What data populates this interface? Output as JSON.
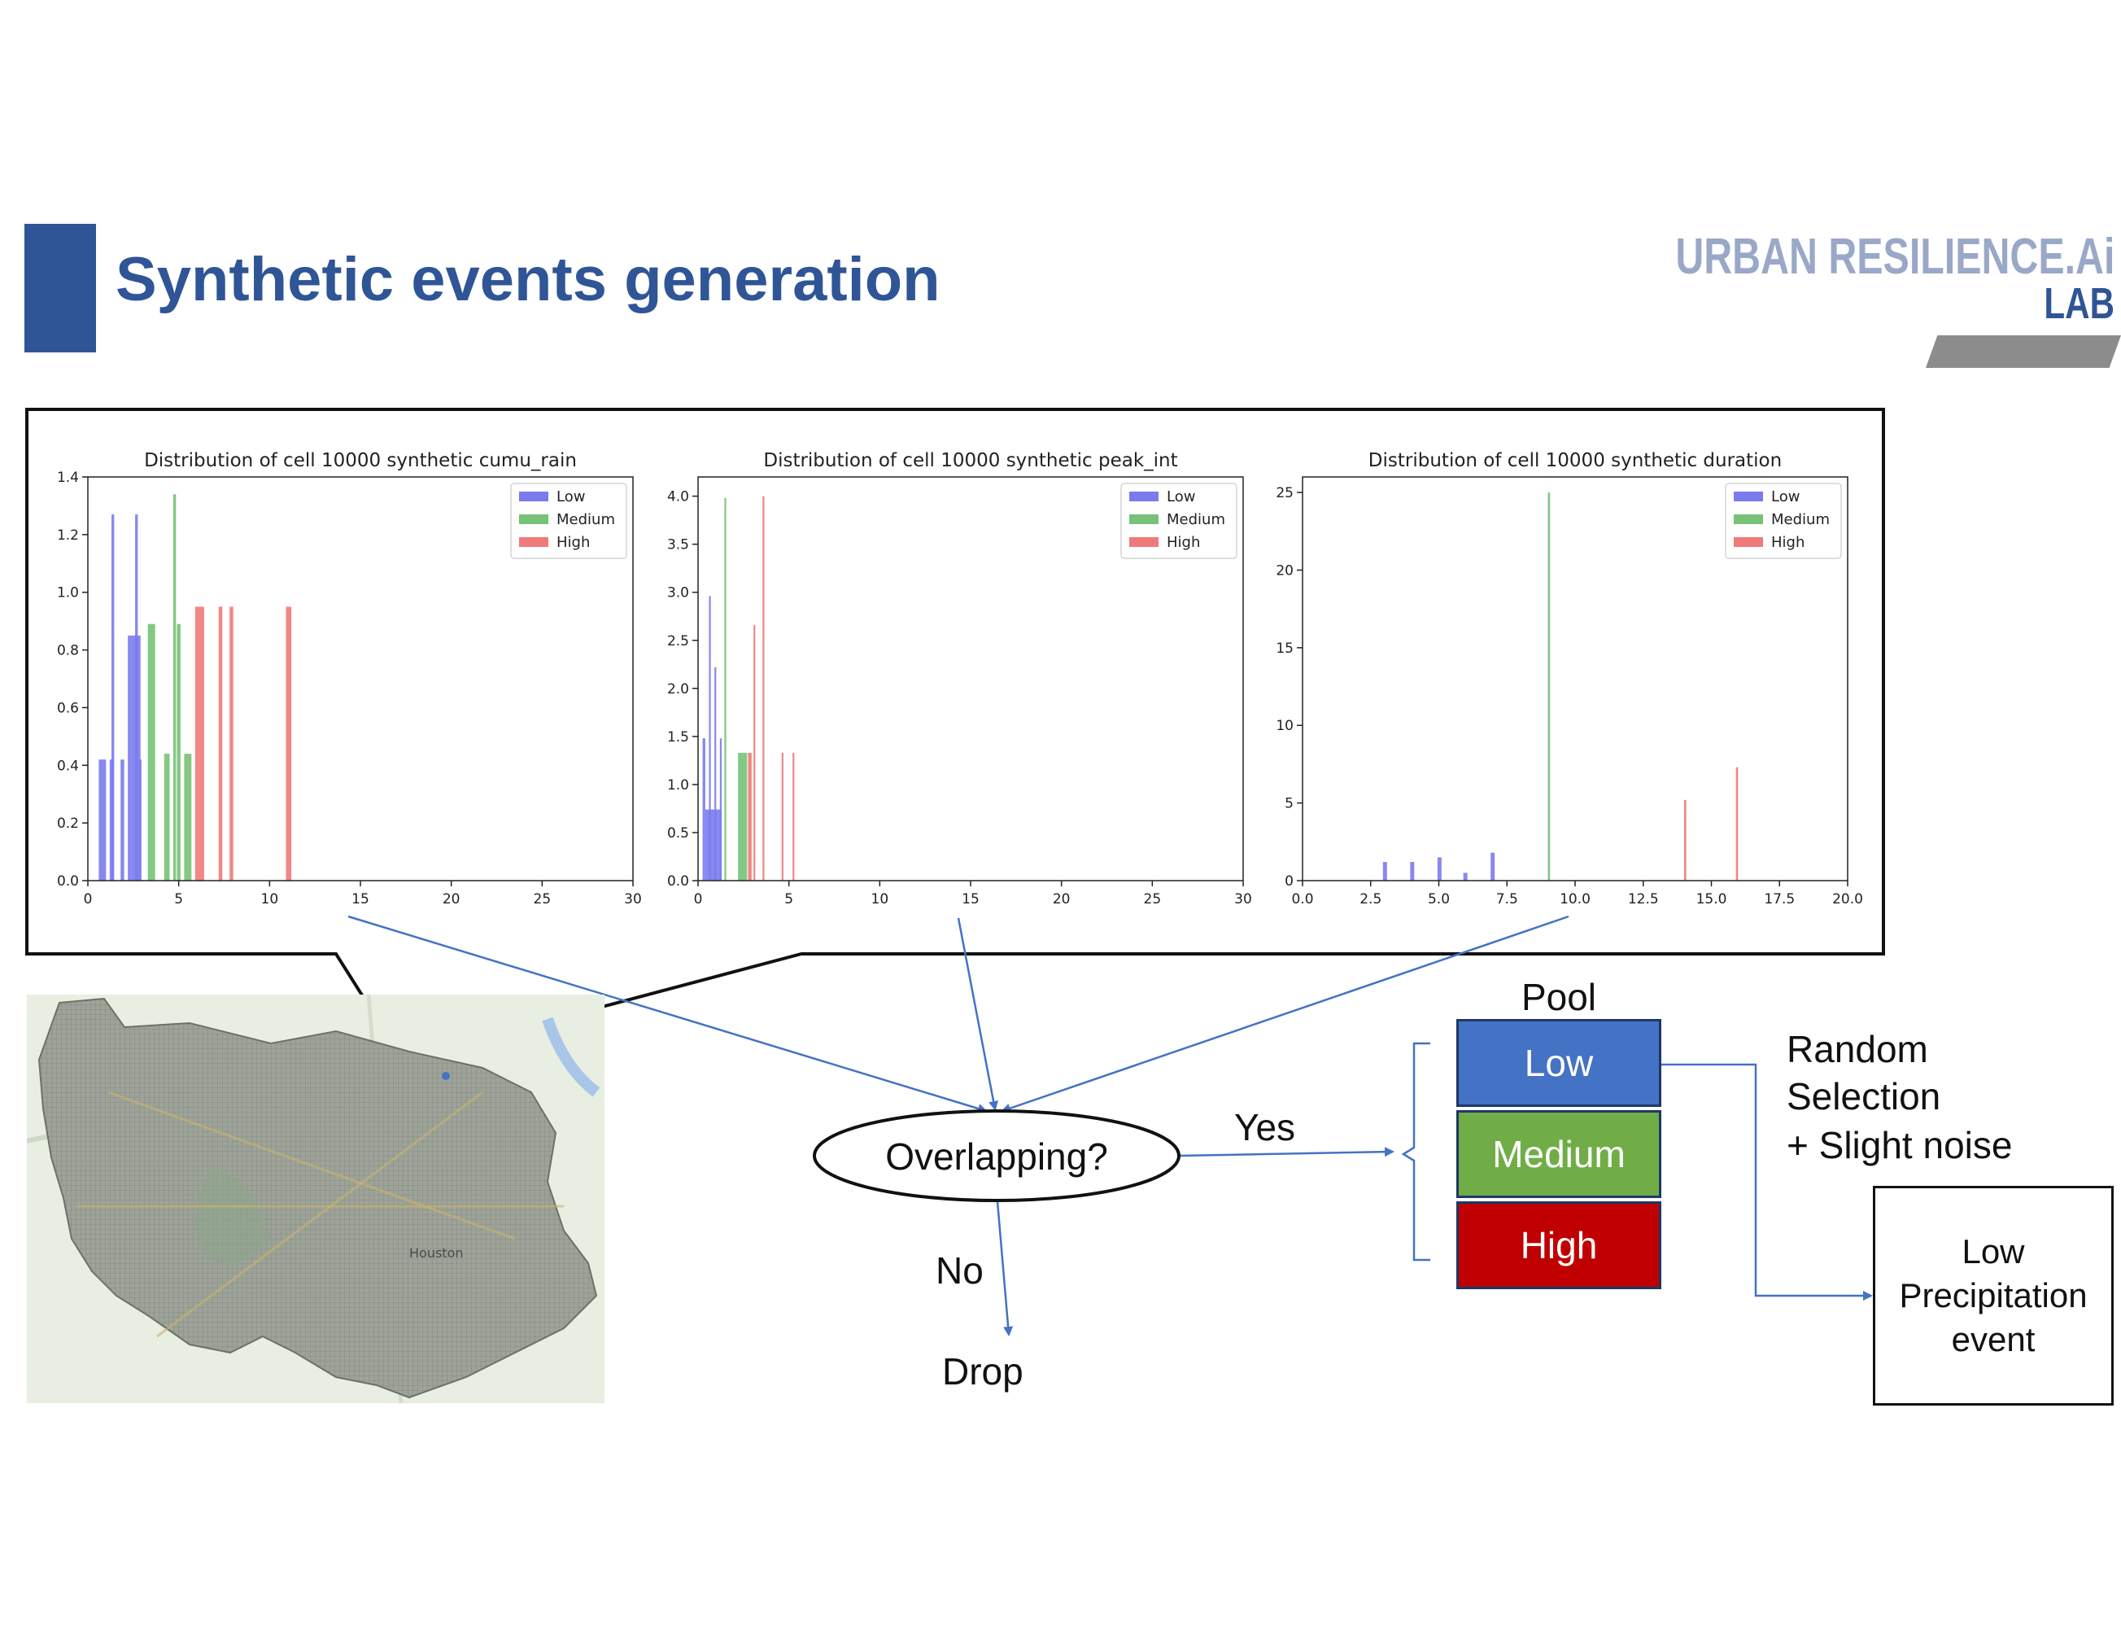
{
  "slide": {
    "title": "Synthetic events generation"
  },
  "logo": {
    "main": "URBAN RESILIENCE.Ai",
    "sub": "LAB"
  },
  "colors": {
    "low": "#7b7bf0",
    "medium": "#76c276",
    "high": "#f07a7a",
    "accent": "#2f5597",
    "arrow": "#4472c4",
    "pool_low": "#4472c4",
    "pool_medium": "#70ad47",
    "pool_high": "#c00000"
  },
  "chart_data": [
    {
      "type": "bar",
      "title": "Distribution of cell 10000 synthetic cumu_rain",
      "xlim": [
        0,
        30
      ],
      "ylim": [
        0,
        1.4
      ],
      "xticks": [
        "0",
        "5",
        "10",
        "15",
        "20",
        "25",
        "30"
      ],
      "yticks": [
        "0.0",
        "0.2",
        "0.4",
        "0.6",
        "0.8",
        "1.0",
        "1.2",
        "1.4"
      ],
      "legend": [
        "Low",
        "Medium",
        "High"
      ],
      "legend_position": "top-right",
      "series": [
        {
          "name": "Low",
          "bars": [
            [
              0.6,
              1.0,
              0.42
            ],
            [
              1.2,
              1.4,
              0.42
            ],
            [
              1.3,
              1.45,
              1.27
            ],
            [
              1.8,
              2.0,
              0.42
            ],
            [
              2.2,
              2.4,
              0.85
            ],
            [
              2.4,
              2.9,
              0.85
            ],
            [
              2.6,
              2.75,
              1.27
            ],
            [
              2.8,
              2.95,
              0.42
            ]
          ]
        },
        {
          "name": "Medium",
          "bars": [
            [
              3.3,
              3.7,
              0.89
            ],
            [
              4.2,
              4.5,
              0.44
            ],
            [
              4.7,
              4.85,
              1.34
            ],
            [
              4.9,
              5.1,
              0.89
            ],
            [
              5.3,
              5.7,
              0.44
            ]
          ]
        },
        {
          "name": "High",
          "bars": [
            [
              5.9,
              6.4,
              0.95
            ],
            [
              7.2,
              7.4,
              0.95
            ],
            [
              7.8,
              8.0,
              0.95
            ],
            [
              10.9,
              11.2,
              0.95
            ]
          ]
        }
      ]
    },
    {
      "type": "bar",
      "title": "Distribution of cell 10000 synthetic peak_int",
      "xlim": [
        0,
        30
      ],
      "ylim": [
        0,
        4.2
      ],
      "xticks": [
        "0",
        "5",
        "10",
        "15",
        "20",
        "25",
        "30"
      ],
      "yticks": [
        "0.0",
        "0.5",
        "1.0",
        "1.5",
        "2.0",
        "2.5",
        "3.0",
        "3.5",
        "4.0"
      ],
      "legend": [
        "Low",
        "Medium",
        "High"
      ],
      "legend_position": "top-right",
      "series": [
        {
          "name": "Low",
          "bars": [
            [
              0.25,
              0.4,
              1.48
            ],
            [
              0.4,
              1.3,
              0.74
            ],
            [
              0.6,
              0.7,
              2.96
            ],
            [
              0.9,
              1.0,
              2.22
            ],
            [
              1.2,
              1.3,
              1.48
            ]
          ]
        },
        {
          "name": "Medium",
          "bars": [
            [
              1.45,
              1.55,
              3.98
            ],
            [
              2.2,
              2.7,
              1.33
            ]
          ]
        },
        {
          "name": "High",
          "bars": [
            [
              2.75,
              2.95,
              1.33
            ],
            [
              3.05,
              3.15,
              2.66
            ],
            [
              3.55,
              3.65,
              4.0
            ],
            [
              4.6,
              4.7,
              1.33
            ],
            [
              5.2,
              5.3,
              1.33
            ]
          ]
        }
      ]
    },
    {
      "type": "bar",
      "title": "Distribution of cell 10000 synthetic duration",
      "xlim": [
        0,
        20
      ],
      "ylim": [
        0,
        26
      ],
      "xticks": [
        "0.0",
        "2.5",
        "5.0",
        "7.5",
        "10.0",
        "12.5",
        "15.0",
        "17.5",
        "20.0"
      ],
      "yticks": [
        "0",
        "5",
        "10",
        "15",
        "20",
        "25"
      ],
      "legend": [
        "Low",
        "Medium",
        "High"
      ],
      "legend_position": "top-right",
      "series": [
        {
          "name": "Low",
          "bars": [
            [
              2.95,
              3.1,
              1.2
            ],
            [
              3.95,
              4.1,
              1.2
            ],
            [
              4.95,
              5.1,
              1.5
            ],
            [
              5.9,
              6.05,
              0.5
            ],
            [
              6.9,
              7.05,
              1.8
            ]
          ]
        },
        {
          "name": "Medium",
          "bars": [
            [
              9.0,
              9.08,
              25
            ]
          ]
        },
        {
          "name": "High",
          "bars": [
            [
              14.0,
              14.08,
              5.2
            ],
            [
              15.9,
              15.98,
              7.3
            ]
          ]
        }
      ]
    }
  ],
  "flow": {
    "overlap": "Overlapping?",
    "yes": "Yes",
    "no": "No",
    "drop": "Drop",
    "pool_title": "Pool",
    "pool": [
      "Low",
      "Medium",
      "High"
    ],
    "selection": [
      "Random",
      "Selection",
      "+ Slight noise"
    ],
    "output": "Low\nPrecipitation\nevent"
  },
  "map": {
    "city_label": "Houston"
  }
}
